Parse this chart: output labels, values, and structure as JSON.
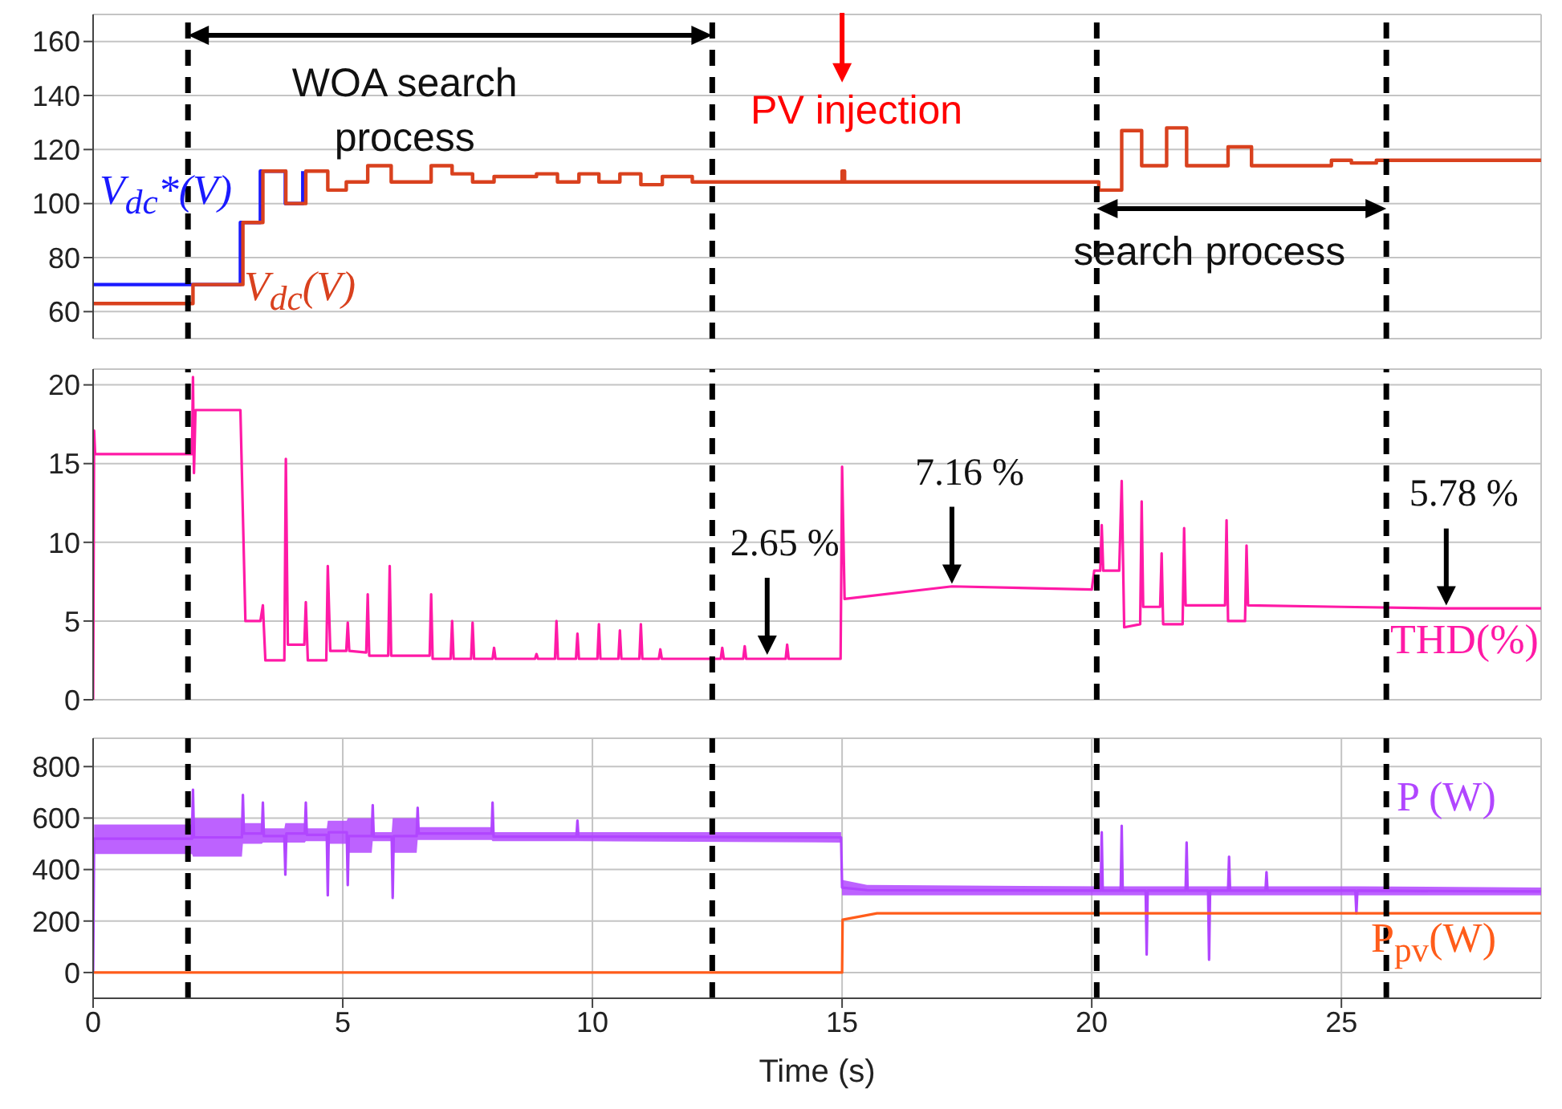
{
  "chart_data": [
    {
      "type": "step",
      "xlim": [
        0,
        29
      ],
      "xticks": [
        0,
        5,
        10,
        15,
        20,
        25
      ],
      "ylim": [
        50,
        170
      ],
      "yticks": [
        60,
        80,
        100,
        120,
        140,
        160
      ],
      "grid": true,
      "tick_labels": "y",
      "marker": "none",
      "ref_lines": [
        {
          "axis": "x",
          "value": 1.9,
          "color": "#000000",
          "line_style": "dashed"
        },
        {
          "axis": "x",
          "value": 12.4,
          "color": "#000000",
          "line_style": "dashed"
        },
        {
          "axis": "x",
          "value": 20.1,
          "color": "#000000",
          "line_style": "dashed"
        },
        {
          "axis": "x",
          "value": 25.9,
          "color": "#000000",
          "line_style": "dashed"
        }
      ],
      "annotations": [
        "WOA search process",
        {
          "text": "PV injection",
          "x": 15,
          "y": 108
        },
        "search process"
      ],
      "series": [
        {
          "name": "V$_{dc}$*(V)",
          "color": "#1a1aff",
          "x": [
            0,
            2.0,
            2.95,
            3.35,
            3.85,
            4.2
          ],
          "values": [
            70,
            70,
            93,
            112,
            100,
            112
          ]
        },
        {
          "name": "V$_{dc}$(V)",
          "color": "#d9411e",
          "x": [
            0,
            2.0,
            3.0,
            3.4,
            3.86,
            4.26,
            4.7,
            5.07,
            5.5,
            5.97,
            6.77,
            7.19,
            7.6,
            8.03,
            8.88,
            9.3,
            9.73,
            10.13,
            10.55,
            10.97,
            11.4,
            12.0,
            15.0,
            15.05,
            20.14,
            20.6,
            21.0,
            21.5,
            21.9,
            22.73,
            23.2,
            24.8,
            25.2,
            25.7,
            29
          ],
          "values": [
            63,
            70,
            93,
            112,
            100,
            112,
            105,
            108,
            114,
            108,
            114,
            111,
            108,
            110,
            111,
            108,
            111,
            108,
            111,
            107,
            110,
            108,
            112,
            108,
            105,
            127,
            114,
            128,
            114,
            121,
            114,
            116,
            115,
            116,
            116
          ]
        }
      ]
    },
    {
      "type": "line",
      "xlim": [
        0,
        29
      ],
      "xticks": [
        0,
        5,
        10,
        15,
        20,
        25
      ],
      "ylim": [
        0,
        21
      ],
      "yticks": [
        0,
        5,
        10,
        15,
        20
      ],
      "grid": true,
      "tick_labels": "y",
      "marker": "none",
      "ref_lines": [
        {
          "axis": "x",
          "value": 1.9,
          "color": "#000000",
          "line_style": "dashed"
        },
        {
          "axis": "x",
          "value": 12.4,
          "color": "#000000",
          "line_style": "dashed"
        },
        {
          "axis": "x",
          "value": 20.1,
          "color": "#000000",
          "line_style": "dashed"
        },
        {
          "axis": "x",
          "value": 25.9,
          "color": "#000000",
          "line_style": "dashed"
        }
      ],
      "annotations": [
        {
          "text": "2.65 %",
          "x": 13.5,
          "y": 2.65
        },
        {
          "text": "7.16 %",
          "x": 17.2,
          "y": 7.16
        },
        {
          "text": "5.78 %",
          "x": 27.1,
          "y": 5.78
        }
      ],
      "series": [
        {
          "name": "THD(%)",
          "color": "#ff1aa6",
          "x": [
            0,
            0.02,
            0.04,
            1.98,
            2.0,
            2.02,
            2.05,
            2.95,
            3.05,
            3.35,
            3.4,
            3.45,
            3.83,
            3.86,
            3.9,
            4.23,
            4.26,
            4.3,
            4.67,
            4.7,
            4.75,
            5.07,
            5.1,
            5.13,
            5.47,
            5.5,
            5.53,
            5.91,
            5.94,
            5.97,
            6.74,
            6.77,
            6.8,
            7.16,
            7.19,
            7.22,
            7.57,
            7.6,
            7.63,
            8.0,
            8.03,
            8.06,
            8.85,
            8.88,
            8.91,
            9.25,
            9.28,
            9.31,
            9.67,
            9.7,
            9.73,
            10.1,
            10.13,
            10.16,
            10.52,
            10.55,
            10.58,
            10.94,
            10.97,
            11.0,
            11.33,
            11.36,
            11.39,
            12.57,
            12.6,
            12.63,
            13.02,
            13.05,
            13.08,
            13.87,
            13.9,
            13.93,
            14.97,
            15.0,
            15.05,
            17.2,
            20.0,
            20.05,
            20.17,
            20.2,
            20.23,
            20.55,
            20.6,
            20.65,
            20.97,
            21.0,
            21.03,
            21.37,
            21.4,
            21.43,
            21.82,
            21.85,
            21.88,
            22.67,
            22.7,
            22.73,
            23.07,
            23.1,
            23.13,
            25,
            27.1,
            29
          ],
          "values": [
            0,
            17.1,
            15.6,
            15.6,
            20.5,
            14.4,
            18.4,
            18.4,
            5.0,
            5.0,
            6.0,
            2.5,
            2.5,
            15.3,
            3.5,
            3.5,
            6.2,
            2.5,
            2.5,
            8.5,
            3.1,
            3.1,
            4.9,
            3.1,
            3.0,
            6.7,
            2.8,
            2.8,
            8.5,
            2.8,
            2.8,
            6.7,
            2.6,
            2.6,
            5.0,
            2.6,
            2.6,
            4.9,
            2.6,
            2.6,
            3.3,
            2.6,
            2.6,
            2.9,
            2.6,
            2.6,
            5.0,
            2.6,
            2.6,
            4.2,
            2.6,
            2.6,
            4.8,
            2.6,
            2.6,
            4.4,
            2.6,
            2.6,
            4.8,
            2.6,
            2.6,
            3.2,
            2.6,
            2.6,
            3.3,
            2.6,
            2.6,
            3.4,
            2.6,
            2.6,
            3.5,
            2.6,
            2.6,
            14.8,
            6.4,
            7.2,
            7.0,
            8.2,
            8.2,
            11.1,
            8.2,
            8.2,
            13.9,
            4.6,
            4.8,
            12.6,
            5.9,
            5.9,
            9.3,
            4.8,
            4.8,
            10.9,
            6.0,
            6.0,
            11.4,
            5.0,
            5.0,
            9.8,
            6.0,
            5.9,
            5.8,
            5.8
          ]
        }
      ]
    },
    {
      "type": "line",
      "xlabel": "Time (s)",
      "xlim": [
        0,
        29
      ],
      "xticks": [
        0,
        5,
        10,
        15,
        20,
        25
      ],
      "ylim": [
        -100,
        910
      ],
      "yticks": [
        0,
        200,
        400,
        600,
        800
      ],
      "grid": true,
      "marker": "none",
      "ref_lines": [
        {
          "axis": "x",
          "value": 1.9,
          "color": "#000000",
          "line_style": "dashed"
        },
        {
          "axis": "x",
          "value": 12.4,
          "color": "#000000",
          "line_style": "dashed"
        },
        {
          "axis": "x",
          "value": 20.1,
          "color": "#000000",
          "line_style": "dashed"
        },
        {
          "axis": "x",
          "value": 25.9,
          "color": "#000000",
          "line_style": "dashed"
        }
      ],
      "series": [
        {
          "name": "P (W)",
          "color": "#b146ff",
          "x": [
            0,
            0.02,
            1.98,
            2.0,
            2.02,
            2.98,
            3.0,
            3.02,
            3.38,
            3.4,
            3.42,
            3.83,
            3.85,
            3.87,
            4.24,
            4.26,
            4.28,
            4.68,
            4.7,
            4.72,
            5.08,
            5.1,
            5.12,
            5.58,
            5.6,
            5.62,
            5.98,
            6.0,
            6.02,
            6.48,
            6.5,
            6.52,
            7.98,
            8.0,
            8.02,
            9.68,
            9.7,
            9.72,
            14.98,
            15.0,
            15.5,
            20.18,
            20.2,
            20.22,
            20.58,
            20.6,
            20.62,
            21.08,
            21.1,
            21.12,
            21.88,
            21.9,
            21.92,
            22.33,
            22.35,
            22.37,
            22.73,
            22.75,
            22.77,
            23.48,
            23.5,
            23.52,
            25.28,
            25.3,
            25.32,
            29
          ],
          "values": [
            0,
            520,
            520,
            710,
            525,
            525,
            690,
            540,
            540,
            660,
            530,
            530,
            380,
            540,
            540,
            660,
            535,
            535,
            300,
            545,
            545,
            340,
            530,
            530,
            650,
            528,
            528,
            290,
            530,
            530,
            640,
            540,
            540,
            660,
            528,
            528,
            590,
            528,
            525,
            330,
            320,
            318,
            545,
            318,
            318,
            570,
            318,
            318,
            70,
            318,
            318,
            505,
            318,
            318,
            50,
            318,
            318,
            450,
            318,
            318,
            390,
            318,
            318,
            230,
            318,
            315
          ],
          "lower": [
            0,
            460,
            460,
            450,
            450,
            450,
            500,
            500,
            500,
            505,
            505,
            505,
            505,
            505,
            505,
            510,
            510,
            510,
            500,
            500,
            500,
            465,
            465,
            465,
            510,
            510,
            510,
            465,
            465,
            465,
            515,
            515,
            515,
            510,
            510,
            510,
            510,
            510,
            505,
            300,
            300,
            300,
            300,
            300,
            300,
            300,
            300,
            300,
            300,
            300,
            300,
            300,
            300,
            300,
            300,
            300,
            300,
            300,
            300,
            300,
            300,
            300,
            300,
            300,
            300,
            300
          ],
          "upper": [
            0,
            575,
            575,
            600,
            600,
            600,
            580,
            580,
            580,
            560,
            560,
            560,
            580,
            580,
            580,
            560,
            560,
            560,
            590,
            590,
            590,
            600,
            600,
            600,
            545,
            545,
            545,
            600,
            600,
            600,
            565,
            565,
            565,
            545,
            545,
            545,
            545,
            545,
            545,
            360,
            340,
            335,
            335,
            335,
            335,
            335,
            335,
            335,
            335,
            335,
            335,
            335,
            335,
            335,
            335,
            335,
            335,
            335,
            335,
            335,
            335,
            335,
            335,
            335,
            335,
            330
          ]
        },
        {
          "name": "P$_{pv}$(W)",
          "color": "#ff5c1a",
          "x": [
            0,
            15.0,
            15.01,
            15.7,
            29
          ],
          "values": [
            0,
            0,
            205,
            230,
            230
          ]
        }
      ]
    }
  ]
}
